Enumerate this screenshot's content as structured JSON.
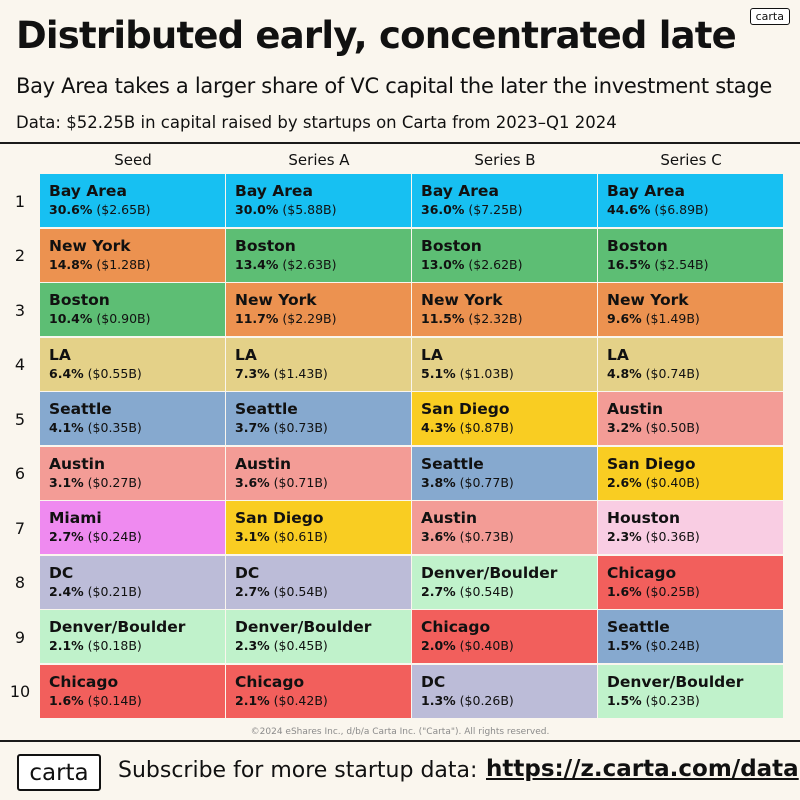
{
  "header": {
    "corner_logo": "carta",
    "title": "Distributed early, concentrated late",
    "subtitle": "Bay Area takes a larger share of VC capital the later the investment stage",
    "source": "Data: $52.25B in capital raised by startups on Carta from 2023–Q1 2024"
  },
  "footer": {
    "copyright": "©2024 eShares Inc., d/b/a Carta Inc. (\"Carta\"). All rights reserved.",
    "logo": "carta",
    "subscribe": "Subscribe for more startup data:",
    "link": "https://z.carta.com/data"
  },
  "colors": {
    "Bay Area": "#17c0f2",
    "New York": "#ec9250",
    "Boston": "#5dbe74",
    "LA": "#e4d188",
    "Seattle": "#86a9cf",
    "Austin": "#f39c96",
    "Miami": "#ef8af0",
    "DC": "#bcbcd8",
    "Denver/Boulder": "#c0f2cb",
    "Chicago": "#f25f5c",
    "San Diego": "#f9cd22",
    "Houston": "#f9cde3"
  },
  "chart_data": {
    "type": "table",
    "title": "Distributed early, concentrated late",
    "columns": [
      "Seed",
      "Series A",
      "Series B",
      "Series C"
    ],
    "ranks": [
      "1",
      "2",
      "3",
      "4",
      "5",
      "6",
      "7",
      "8",
      "9",
      "10"
    ],
    "series": [
      {
        "name": "Seed",
        "values": [
          {
            "city": "Bay Area",
            "pct": "30.6%",
            "amount": "($2.65B)"
          },
          {
            "city": "New York",
            "pct": "14.8%",
            "amount": "($1.28B)"
          },
          {
            "city": "Boston",
            "pct": "10.4%",
            "amount": "($0.90B)"
          },
          {
            "city": "LA",
            "pct": "6.4%",
            "amount": "($0.55B)"
          },
          {
            "city": "Seattle",
            "pct": "4.1%",
            "amount": "($0.35B)"
          },
          {
            "city": "Austin",
            "pct": "3.1%",
            "amount": "($0.27B)"
          },
          {
            "city": "Miami",
            "pct": "2.7%",
            "amount": "($0.24B)"
          },
          {
            "city": "DC",
            "pct": "2.4%",
            "amount": "($0.21B)"
          },
          {
            "city": "Denver/Boulder",
            "pct": "2.1%",
            "amount": "($0.18B)"
          },
          {
            "city": "Chicago",
            "pct": "1.6%",
            "amount": "($0.14B)"
          }
        ]
      },
      {
        "name": "Series A",
        "values": [
          {
            "city": "Bay Area",
            "pct": "30.0%",
            "amount": "($5.88B)"
          },
          {
            "city": "Boston",
            "pct": "13.4%",
            "amount": "($2.63B)"
          },
          {
            "city": "New York",
            "pct": "11.7%",
            "amount": "($2.29B)"
          },
          {
            "city": "LA",
            "pct": "7.3%",
            "amount": "($1.43B)"
          },
          {
            "city": "Seattle",
            "pct": "3.7%",
            "amount": "($0.73B)"
          },
          {
            "city": "Austin",
            "pct": "3.6%",
            "amount": "($0.71B)"
          },
          {
            "city": "San Diego",
            "pct": "3.1%",
            "amount": "($0.61B)"
          },
          {
            "city": "DC",
            "pct": "2.7%",
            "amount": "($0.54B)"
          },
          {
            "city": "Denver/Boulder",
            "pct": "2.3%",
            "amount": "($0.45B)"
          },
          {
            "city": "Chicago",
            "pct": "2.1%",
            "amount": "($0.42B)"
          }
        ]
      },
      {
        "name": "Series B",
        "values": [
          {
            "city": "Bay Area",
            "pct": "36.0%",
            "amount": "($7.25B)"
          },
          {
            "city": "Boston",
            "pct": "13.0%",
            "amount": "($2.62B)"
          },
          {
            "city": "New York",
            "pct": "11.5%",
            "amount": "($2.32B)"
          },
          {
            "city": "LA",
            "pct": "5.1%",
            "amount": "($1.03B)"
          },
          {
            "city": "San Diego",
            "pct": "4.3%",
            "amount": "($0.87B)"
          },
          {
            "city": "Seattle",
            "pct": "3.8%",
            "amount": "($0.77B)"
          },
          {
            "city": "Austin",
            "pct": "3.6%",
            "amount": "($0.73B)"
          },
          {
            "city": "Denver/Boulder",
            "pct": "2.7%",
            "amount": "($0.54B)"
          },
          {
            "city": "Chicago",
            "pct": "2.0%",
            "amount": "($0.40B)"
          },
          {
            "city": "DC",
            "pct": "1.3%",
            "amount": "($0.26B)"
          }
        ]
      },
      {
        "name": "Series C",
        "values": [
          {
            "city": "Bay Area",
            "pct": "44.6%",
            "amount": "($6.89B)"
          },
          {
            "city": "Boston",
            "pct": "16.5%",
            "amount": "($2.54B)"
          },
          {
            "city": "New York",
            "pct": "9.6%",
            "amount": "($1.49B)"
          },
          {
            "city": "LA",
            "pct": "4.8%",
            "amount": "($0.74B)"
          },
          {
            "city": "Austin",
            "pct": "3.2%",
            "amount": "($0.50B)"
          },
          {
            "city": "San Diego",
            "pct": "2.6%",
            "amount": "($0.40B)"
          },
          {
            "city": "Houston",
            "pct": "2.3%",
            "amount": "($0.36B)"
          },
          {
            "city": "Chicago",
            "pct": "1.6%",
            "amount": "($0.25B)"
          },
          {
            "city": "Seattle",
            "pct": "1.5%",
            "amount": "($0.24B)"
          },
          {
            "city": "Denver/Boulder",
            "pct": "1.5%",
            "amount": "($0.23B)"
          }
        ]
      }
    ]
  }
}
